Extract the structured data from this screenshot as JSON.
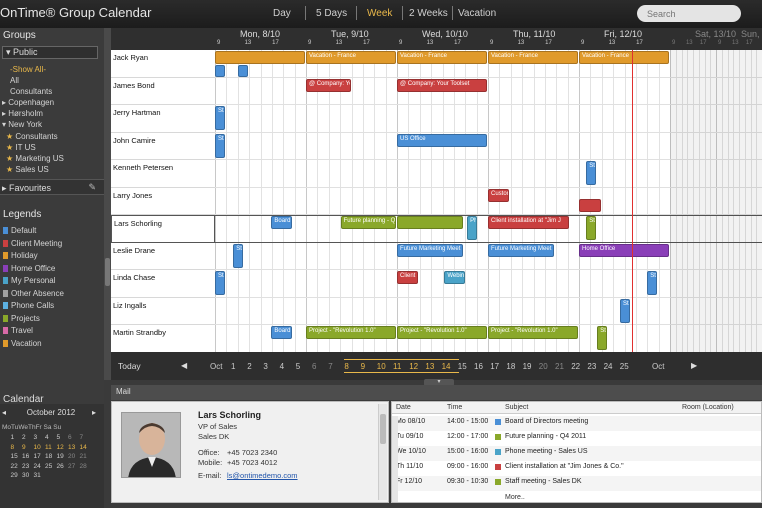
{
  "app": {
    "title": "OnTime® Group Calendar"
  },
  "views": [
    "Day",
    "5 Days",
    "Week",
    "2 Weeks",
    "Vacation"
  ],
  "active_view": "Week",
  "search": {
    "placeholder": "Search"
  },
  "groups": {
    "title": "Groups",
    "public_label": "Public",
    "items": [
      "-Show All-",
      "All",
      "Consultants",
      "Copenhagen",
      "Hørsholm",
      "New York",
      "Consultants",
      "IT US",
      "Marketing US",
      "Sales US"
    ],
    "favourites_label": "Favourites"
  },
  "legends": {
    "title": "Legends",
    "items": [
      {
        "label": "Default",
        "color": "#4a8fd6"
      },
      {
        "label": "Client Meeting",
        "color": "#c94040"
      },
      {
        "label": "Holiday",
        "color": "#e09a2b"
      },
      {
        "label": "Home Office",
        "color": "#8a3fb8"
      },
      {
        "label": "My Personal",
        "color": "#4aa3c8"
      },
      {
        "label": "Other Absence",
        "color": "#a0a0a0"
      },
      {
        "label": "Phone Calls",
        "color": "#5cb0e0"
      },
      {
        "label": "Projects",
        "color": "#8aa82a"
      },
      {
        "label": "Travel",
        "color": "#d86aa8"
      },
      {
        "label": "Vacation",
        "color": "#e09a2b"
      }
    ]
  },
  "calendar": {
    "title": "Calendar",
    "month": "October 2012",
    "weekdays": "MoTuWeThFr Sa Su"
  },
  "days": [
    {
      "label": "Mon, 8/10",
      "hours": [
        "9",
        "13",
        "17"
      ]
    },
    {
      "label": "Tue, 9/10",
      "hours": [
        "9",
        "13",
        "17"
      ]
    },
    {
      "label": "Wed, 10/10",
      "hours": [
        "9",
        "13",
        "17"
      ]
    },
    {
      "label": "Thu, 11/10",
      "hours": [
        "9",
        "13",
        "17"
      ]
    },
    {
      "label": "Fri, 12/10",
      "hours": [
        "9",
        "13",
        "17"
      ]
    },
    {
      "label": "Sat, 13/10",
      "hours": [
        "9",
        "13",
        "17"
      ]
    },
    {
      "label": "Sun, 14/10",
      "hours": [
        "9",
        "13",
        "17"
      ]
    }
  ],
  "people": [
    {
      "name": "Jack Ryan",
      "events": [
        {
          "day": 0,
          "start": 0.0,
          "dur": 1.0,
          "label": "",
          "color": "#e09a2b",
          "lane": 0
        },
        {
          "day": 1,
          "start": 0.0,
          "dur": 1.0,
          "label": "Vacation - France",
          "color": "#e09a2b",
          "lane": 0
        },
        {
          "day": 2,
          "start": 0.0,
          "dur": 1.0,
          "label": "Vacation - France",
          "color": "#e09a2b",
          "lane": 0
        },
        {
          "day": 3,
          "start": 0.0,
          "dur": 1.0,
          "label": "Vacation - France",
          "color": "#e09a2b",
          "lane": 0
        },
        {
          "day": 4,
          "start": 0.0,
          "dur": 1.0,
          "label": "Vacation - France",
          "color": "#e09a2b",
          "lane": 0
        },
        {
          "day": 0,
          "start": 0.0,
          "dur": 0.12,
          "label": "",
          "color": "#4a8fd6",
          "lane": 1
        },
        {
          "day": 0,
          "start": 0.25,
          "dur": 0.12,
          "label": "",
          "color": "#4a8fd6",
          "lane": 1
        }
      ]
    },
    {
      "name": "James Bond",
      "events": [
        {
          "day": 1,
          "start": 0.0,
          "dur": 0.5,
          "label": "@ Company: Yo",
          "color": "#c94040",
          "lane": 0
        },
        {
          "day": 2,
          "start": 0.0,
          "dur": 1.0,
          "label": "@ Company: Your Toolset",
          "color": "#c94040",
          "lane": 0
        }
      ]
    },
    {
      "name": "Jerry Hartman",
      "events": [
        {
          "day": 0,
          "start": 0.0,
          "dur": 0.12,
          "label": "Sta",
          "color": "#4a8fd6",
          "lane": 0
        }
      ]
    },
    {
      "name": "John Camire",
      "events": [
        {
          "day": 0,
          "start": 0.0,
          "dur": 0.12,
          "label": "Sta",
          "color": "#4a8fd6",
          "lane": 0
        },
        {
          "day": 2,
          "start": 0.0,
          "dur": 1.0,
          "label": "US Office",
          "color": "#4a8fd6",
          "lane": 0
        }
      ]
    },
    {
      "name": "Kenneth Petersen",
      "events": [
        {
          "day": 4,
          "start": 0.08,
          "dur": 0.12,
          "label": "Sta",
          "color": "#4a8fd6",
          "lane": 0
        }
      ]
    },
    {
      "name": "Larry Jones",
      "events": [
        {
          "day": 3,
          "start": 0.0,
          "dur": 0.24,
          "label": "Custom",
          "color": "#c94040",
          "lane": 0
        },
        {
          "day": 4,
          "start": 0.0,
          "dur": 0.25,
          "label": "",
          "color": "#c94040",
          "lane": 0
        }
      ]
    },
    {
      "name": "Lars Schorling",
      "events": [
        {
          "day": 0,
          "start": 0.62,
          "dur": 0.24,
          "label": "Board",
          "color": "#4a8fd6",
          "lane": 0
        },
        {
          "day": 1,
          "start": 0.38,
          "dur": 0.62,
          "label": "Future planning - Q",
          "color": "#8aa82a",
          "lane": 0
        },
        {
          "day": 2,
          "start": 0.0,
          "dur": 0.74,
          "label": "",
          "color": "#8aa82a",
          "lane": 0
        },
        {
          "day": 2,
          "start": 0.77,
          "dur": 0.12,
          "label": "Pho",
          "color": "#4aa3c8",
          "lane": 0
        },
        {
          "day": 3,
          "start": 0.0,
          "dur": 0.9,
          "label": "Client installation at \"Jim J",
          "color": "#c94040",
          "lane": 0
        },
        {
          "day": 4,
          "start": 0.08,
          "dur": 0.12,
          "label": "Sta",
          "color": "#8aa82a",
          "lane": 0
        }
      ]
    },
    {
      "name": "Leslie Drane",
      "events": [
        {
          "day": 0,
          "start": 0.2,
          "dur": 0.12,
          "label": "Sta",
          "color": "#4a8fd6",
          "lane": 0
        },
        {
          "day": 2,
          "start": 0.0,
          "dur": 0.74,
          "label": "Future Marketing Meet",
          "color": "#4a8fd6",
          "lane": 0
        },
        {
          "day": 3,
          "start": 0.0,
          "dur": 0.74,
          "label": "Future Marketing Meet",
          "color": "#4a8fd6",
          "lane": 0
        },
        {
          "day": 4,
          "start": 0.0,
          "dur": 1.0,
          "label": "Home Office",
          "color": "#8a3fb8",
          "lane": 0
        }
      ]
    },
    {
      "name": "Linda Chase",
      "events": [
        {
          "day": 0,
          "start": 0.0,
          "dur": 0.12,
          "label": "Sta",
          "color": "#4a8fd6",
          "lane": 0
        },
        {
          "day": 2,
          "start": 0.0,
          "dur": 0.24,
          "label": "Client",
          "color": "#c94040",
          "lane": 0
        },
        {
          "day": 2,
          "start": 0.52,
          "dur": 0.24,
          "label": "Webin",
          "color": "#4aa3c8",
          "lane": 0
        },
        {
          "day": 4,
          "start": 0.75,
          "dur": 0.12,
          "label": "Sta",
          "color": "#4a8fd6",
          "lane": 0
        }
      ]
    },
    {
      "name": "Liz Ingalls",
      "events": [
        {
          "day": 4,
          "start": 0.45,
          "dur": 0.12,
          "label": "Sta",
          "color": "#4a8fd6",
          "lane": 0
        }
      ]
    },
    {
      "name": "Martin Strandby",
      "events": [
        {
          "day": 0,
          "start": 0.62,
          "dur": 0.24,
          "label": "Board",
          "color": "#4a8fd6",
          "lane": 0
        },
        {
          "day": 1,
          "start": 0.0,
          "dur": 1.0,
          "label": "Project - \"Revolution 1.0\"",
          "color": "#8aa82a",
          "lane": 0
        },
        {
          "day": 2,
          "start": 0.0,
          "dur": 1.0,
          "label": "Project - \"Revolution 1.0\"",
          "color": "#8aa82a",
          "lane": 0
        },
        {
          "day": 3,
          "start": 0.0,
          "dur": 1.0,
          "label": "Project - \"Revolution 1.0\"",
          "color": "#8aa82a",
          "lane": 0
        },
        {
          "day": 4,
          "start": 0.2,
          "dur": 0.12,
          "label": "Sta",
          "color": "#8aa82a",
          "lane": 0
        }
      ]
    }
  ],
  "datebar": {
    "today_label": "Today",
    "month_left": "Oct",
    "month_right": "Oct",
    "dates": [
      {
        "d": "1",
        "kind": "n"
      },
      {
        "d": "2",
        "kind": "n"
      },
      {
        "d": "3",
        "kind": "n"
      },
      {
        "d": "4",
        "kind": "n"
      },
      {
        "d": "5",
        "kind": "n"
      },
      {
        "d": "6",
        "kind": "we"
      },
      {
        "d": "7",
        "kind": "we"
      },
      {
        "d": "8",
        "kind": "sel"
      },
      {
        "d": "9",
        "kind": "sel"
      },
      {
        "d": "10",
        "kind": "sel"
      },
      {
        "d": "11",
        "kind": "sel"
      },
      {
        "d": "12",
        "kind": "sel"
      },
      {
        "d": "13",
        "kind": "sel"
      },
      {
        "d": "14",
        "kind": "sel"
      },
      {
        "d": "15",
        "kind": "n"
      },
      {
        "d": "16",
        "kind": "n"
      },
      {
        "d": "17",
        "kind": "n"
      },
      {
        "d": "18",
        "kind": "n"
      },
      {
        "d": "19",
        "kind": "n"
      },
      {
        "d": "20",
        "kind": "we"
      },
      {
        "d": "21",
        "kind": "we"
      },
      {
        "d": "22",
        "kind": "n"
      },
      {
        "d": "23",
        "kind": "n"
      },
      {
        "d": "24",
        "kind": "n"
      },
      {
        "d": "25",
        "kind": "n"
      }
    ]
  },
  "mail": {
    "label": "Mail"
  },
  "contact": {
    "name": "Lars Schorling",
    "title": "VP of Sales",
    "dept": "Sales DK",
    "office_label": "Office:",
    "office": "+45 7023 2340",
    "mobile_label": "Mobile:",
    "mobile": "+45 7023 4012",
    "email_label": "E-mail:",
    "email": "ls@ontimedemo.com"
  },
  "event_list": {
    "headers": {
      "date": "Date",
      "time": "Time",
      "subject": "Subject",
      "room": "Room (Location)"
    },
    "rows": [
      {
        "date": "Mo 08/10",
        "time": "14:00 - 15:00",
        "subject": "Board of Directors meeting",
        "color": "#4a8fd6"
      },
      {
        "date": "Tu 09/10",
        "time": "12:00 - 17:00",
        "subject": "Future planning - Q4 2011",
        "color": "#8aa82a"
      },
      {
        "date": "We 10/10",
        "time": "15:00 - 16:00",
        "subject": "Phone meeting - Sales US",
        "color": "#4aa3c8"
      },
      {
        "date": "Th 11/10",
        "time": "09:00 - 16:00",
        "subject": "Client installation at \"Jim Jones & Co.\"",
        "color": "#c94040"
      },
      {
        "date": "Fr 12/10",
        "time": "09:30 - 10:30",
        "subject": "Staff meeting - Sales DK",
        "color": "#8aa82a"
      }
    ],
    "more": "More.."
  }
}
